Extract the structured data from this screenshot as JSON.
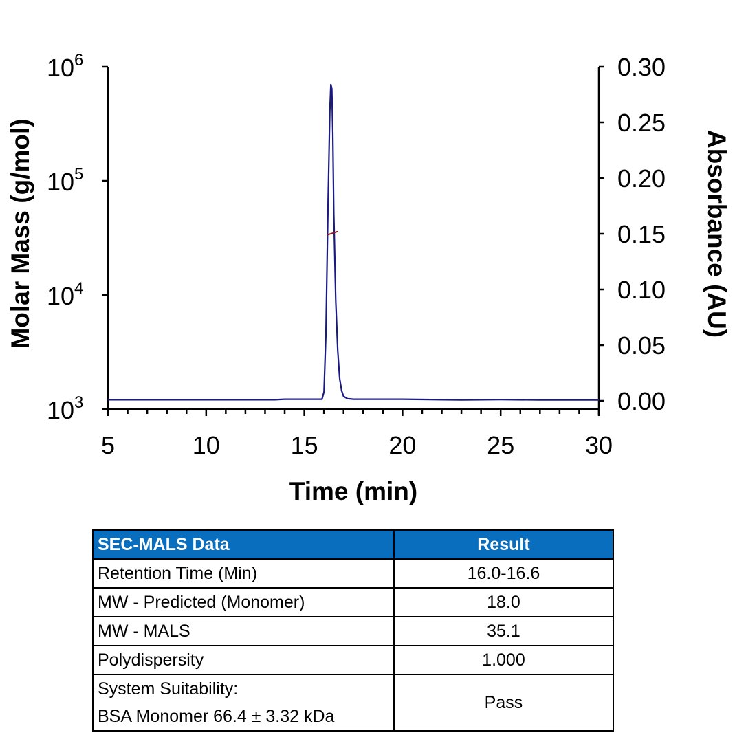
{
  "chart_data": {
    "type": "line",
    "title": "",
    "xlabel": "Time (min)",
    "ylabel_left": "Molar Mass (g/mol)",
    "ylabel_right": "Absorbance (AU)",
    "xlim": [
      5,
      30
    ],
    "xticks": [
      5,
      10,
      15,
      20,
      25,
      30
    ],
    "x_minor_step": 1,
    "ylim_left": [
      1000,
      1000000
    ],
    "yscale_left": "log",
    "yticks_left": [
      "10^3",
      "10^4",
      "10^5",
      "10^6"
    ],
    "ylim_right": [
      0.0,
      0.3
    ],
    "yticks_right": [
      "0.00",
      "0.05",
      "0.10",
      "0.15",
      "0.20",
      "0.25",
      "0.30"
    ],
    "grid": false,
    "legend": null,
    "series": [
      {
        "name": "Absorbance (UV)",
        "axis": "right",
        "color": "#1a1a80",
        "x": [
          5,
          10,
          13.5,
          14.0,
          15.9,
          16.0,
          16.1,
          16.2,
          16.3,
          16.35,
          16.4,
          16.45,
          16.5,
          16.6,
          16.7,
          16.8,
          16.9,
          17.0,
          17.2,
          17.5,
          20,
          23,
          25,
          27,
          30
        ],
        "y": [
          0.001,
          0.001,
          0.001,
          0.0015,
          0.0015,
          0.008,
          0.06,
          0.17,
          0.26,
          0.284,
          0.28,
          0.24,
          0.17,
          0.09,
          0.045,
          0.02,
          0.009,
          0.004,
          0.002,
          0.0015,
          0.0015,
          0.0008,
          0.0012,
          0.0008,
          0.0008
        ]
      },
      {
        "name": "Molar Mass (MALS)",
        "axis": "left",
        "color": "#8b1a1a",
        "x": [
          16.15,
          16.7
        ],
        "y": [
          33500,
          36000
        ]
      }
    ]
  },
  "table": {
    "headers": [
      "SEC-MALS Data",
      "Result"
    ],
    "header_color": "#0a6ebf",
    "rows": [
      {
        "label": "Retention Time (Min)",
        "value": "16.0-16.6"
      },
      {
        "label": "MW - Predicted (Monomer)",
        "value": "18.0"
      },
      {
        "label": "MW - MALS",
        "value": "35.1"
      },
      {
        "label": "Polydispersity",
        "value": "1.000"
      },
      {
        "label_lines": [
          "System Suitability:",
          "BSA Monomer 66.4 ± 3.32 kDa"
        ],
        "value": "Pass"
      }
    ]
  }
}
